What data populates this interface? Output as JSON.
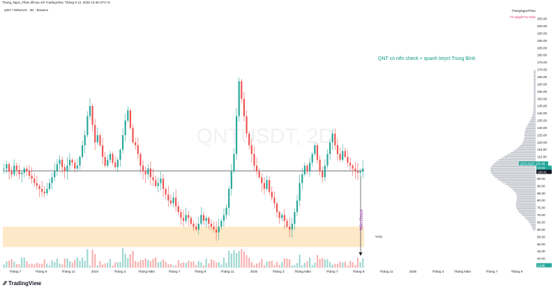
{
  "header": {
    "published_line": "Thang_Ngoc_Phan đã tạo với TradingView, Tháng 9 12, 2025 13:49 UTC+9",
    "symbol_line": "QNT / TetherUS · 2D · Binance",
    "author": "ThangNgocPhan",
    "author_tagline": "Tư Quyết Tự Giác"
  },
  "chart_data": {
    "type": "candlestick",
    "watermark": "QNTUSDT, 2D",
    "annotation": "QNT có nến check + quanh keyct Trung Bình",
    "vertical_label": "Nến Check",
    "zone_label": "VGG",
    "y_axis": {
      "min": 40,
      "max": 205,
      "ticks": [
        205,
        200,
        195,
        190,
        185,
        180,
        175,
        170,
        165,
        160,
        155,
        150,
        145,
        140,
        135,
        130,
        125,
        120,
        115,
        110,
        105,
        100,
        95,
        90,
        85,
        80,
        75,
        70,
        65,
        60,
        55,
        50,
        45,
        40
      ]
    },
    "x_axis_labels": [
      "Tháng 7",
      "Tháng 9",
      "Tháng 11",
      "2024",
      "Tháng 3",
      "Tháng Năm",
      "Tháng 7",
      "Tháng 9",
      "Tháng 11",
      "2025",
      "Tháng 3",
      "Tháng Năm",
      "Tháng 7",
      "Tháng 9",
      "Tháng 11",
      "2026",
      "Tháng 3",
      "Tháng Năm",
      "Tháng 7",
      "Tháng 9"
    ],
    "price_tags": [
      {
        "label": "QNTUSDT",
        "value": "102.45"
      },
      {
        "label": "",
        "value": "04:59"
      },
      {
        "label": "",
        "value": "100.41"
      },
      {
        "label": "",
        "value": "5.93K"
      }
    ],
    "horizontal_line_level": 100.41,
    "demand_zone": [
      48,
      62
    ],
    "close_series": [
      102,
      105,
      100,
      98,
      104,
      101,
      98,
      99,
      102,
      100,
      97,
      95,
      92,
      90,
      88,
      86,
      85,
      88,
      92,
      96,
      100,
      105,
      108,
      103,
      100,
      104,
      108,
      106,
      102,
      104,
      110,
      118,
      125,
      138,
      145,
      132,
      120,
      125,
      118,
      110,
      104,
      108,
      112,
      106,
      103,
      108,
      115,
      125,
      135,
      142,
      130,
      120,
      118,
      112,
      104,
      100,
      98,
      102,
      96,
      94,
      90,
      92,
      95,
      88,
      84,
      80,
      78,
      82,
      76,
      72,
      68,
      66,
      70,
      68,
      64,
      62,
      60,
      64,
      70,
      66,
      68,
      64,
      62,
      60,
      58,
      62,
      66,
      70,
      75,
      88,
      100,
      112,
      138,
      162,
      150,
      138,
      126,
      118,
      112,
      104,
      100,
      96,
      92,
      88,
      94,
      86,
      82,
      78,
      72,
      68,
      70,
      66,
      62,
      60,
      64,
      72,
      80,
      92,
      98,
      104,
      100,
      106,
      112,
      118,
      108,
      100,
      96,
      104,
      112,
      120,
      126,
      118,
      112,
      108,
      114,
      110,
      106,
      104,
      102,
      100,
      99,
      100,
      102
    ]
  },
  "footer": {
    "brand": "TradingView"
  },
  "colors": {
    "up": "#26a69a",
    "down": "#ef5350",
    "zone": "#fde9c8",
    "annotation": "#089981",
    "vertical": "#9c27b0"
  }
}
